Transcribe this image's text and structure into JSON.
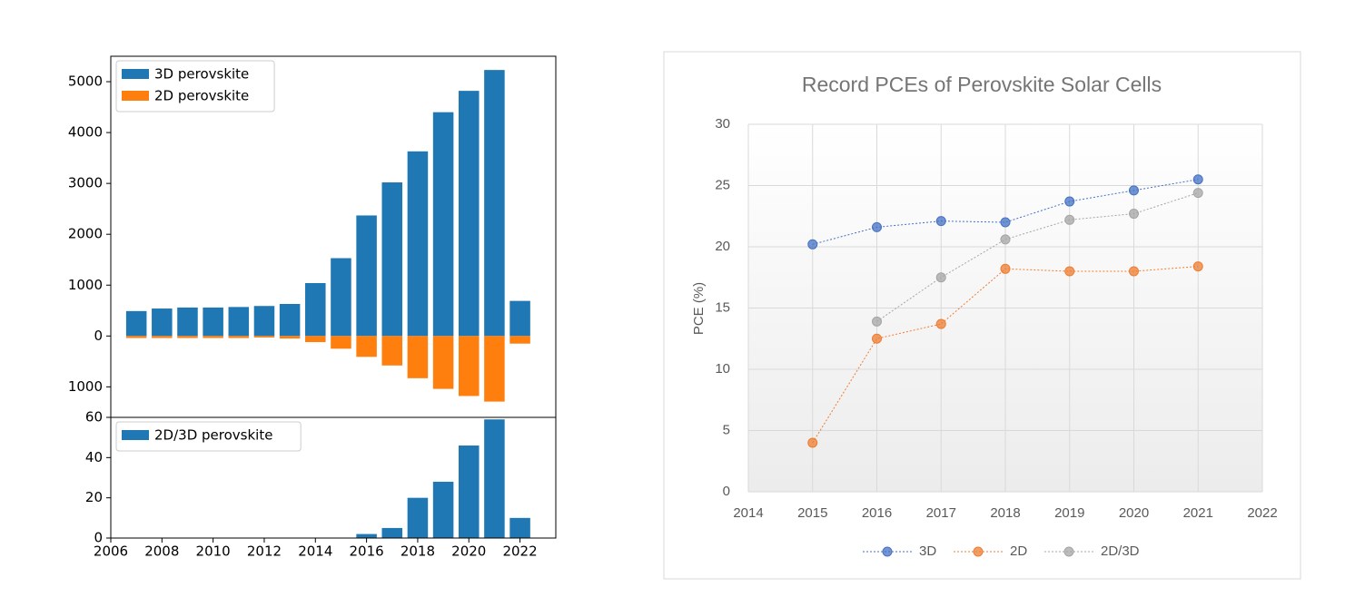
{
  "chart_data": [
    {
      "type": "bar",
      "x": [
        2007,
        2008,
        2009,
        2010,
        2011,
        2012,
        2013,
        2014,
        2015,
        2016,
        2017,
        2018,
        2019,
        2020,
        2021,
        2022
      ],
      "series": [
        {
          "name": "3D perovskite",
          "color": "#1f77b4",
          "values": [
            490,
            540,
            560,
            560,
            570,
            590,
            630,
            1040,
            1530,
            2370,
            3020,
            3630,
            4400,
            4820,
            5230,
            690
          ]
        },
        {
          "name": "2D perovskite",
          "color": "#ff7f0e",
          "values": [
            -40,
            -40,
            -40,
            -40,
            -40,
            -30,
            -50,
            -120,
            -250,
            -410,
            -580,
            -830,
            -1040,
            -1180,
            -1290,
            -150
          ]
        }
      ],
      "xlim": [
        2006,
        2023.4
      ],
      "ylim": [
        -1600,
        5500
      ],
      "yticks": [
        {
          "value": -1000,
          "label": "1000"
        },
        0,
        1000,
        2000,
        3000,
        4000,
        5000
      ],
      "grid": false,
      "legend": "upper left"
    },
    {
      "type": "bar",
      "x": [
        2007,
        2008,
        2009,
        2010,
        2011,
        2012,
        2013,
        2014,
        2015,
        2016,
        2017,
        2018,
        2019,
        2020,
        2021,
        2022
      ],
      "series": [
        {
          "name": "2D/3D perovskite",
          "color": "#1f77b4",
          "values": [
            0,
            0,
            0,
            0,
            0,
            0,
            0,
            0,
            0,
            2,
            5,
            20,
            28,
            46,
            59,
            10
          ]
        }
      ],
      "xlim": [
        2006,
        2023.4
      ],
      "xticks": [
        2006,
        2008,
        2010,
        2012,
        2014,
        2016,
        2018,
        2020,
        2022
      ],
      "ylim": [
        0,
        60
      ],
      "yticks": [
        0,
        20,
        40,
        60
      ],
      "grid": false,
      "legend": "upper left"
    },
    {
      "type": "line",
      "title": "Record PCEs of Perovskite Solar Cells",
      "y_label": "PCE (%)",
      "x": [
        2015,
        2016,
        2017,
        2018,
        2019,
        2020,
        2021
      ],
      "series": [
        {
          "name": "3D",
          "color": "#4472c4",
          "values": [
            20.2,
            21.6,
            22.1,
            22.0,
            23.7,
            24.6,
            25.5
          ]
        },
        {
          "name": "2D",
          "color": "#ed7d31",
          "values": [
            4.0,
            12.5,
            13.7,
            18.2,
            18.0,
            18.0,
            18.4
          ]
        },
        {
          "name": "2D/3D",
          "color": "#a5a5a5",
          "values": [
            null,
            13.9,
            17.5,
            20.6,
            22.2,
            22.7,
            24.4
          ]
        }
      ],
      "xlim": [
        2014,
        2022
      ],
      "xticks": [
        2014,
        2015,
        2016,
        2017,
        2018,
        2019,
        2020,
        2021,
        2022
      ],
      "ylim": [
        0,
        30
      ],
      "yticks": [
        0,
        5,
        10,
        15,
        20,
        25,
        30
      ],
      "grid": true,
      "legend": "bottom"
    }
  ]
}
